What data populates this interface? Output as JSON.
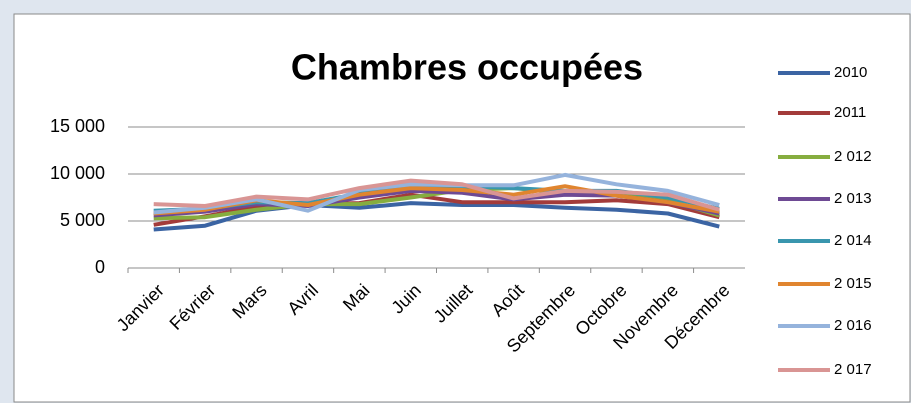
{
  "chart_data": {
    "type": "line",
    "title": "Chambres occupées",
    "categories": [
      "Janvier",
      "Février",
      "Mars",
      "Avril",
      "Mai",
      "Juin",
      "Juillet",
      "Août",
      "Septembre",
      "Octobre",
      "Novembre",
      "Décembre"
    ],
    "series": [
      {
        "name": "2010",
        "color": "#3b64a3",
        "values": [
          4100,
          4500,
          6100,
          6700,
          6400,
          6900,
          6700,
          6700,
          6400,
          6200,
          5800,
          4400
        ]
      },
      {
        "name": "2011",
        "color": "#a33b3a",
        "values": [
          4600,
          5500,
          6500,
          6800,
          6900,
          7800,
          7000,
          7000,
          7000,
          7200,
          6800,
          5400
        ]
      },
      {
        "name": "2 012",
        "color": "#86ad3f",
        "values": [
          5300,
          5400,
          6200,
          6800,
          6800,
          7500,
          8300,
          8500,
          8000,
          8000,
          7200,
          5600
        ]
      },
      {
        "name": "2 013",
        "color": "#6e4a94",
        "values": [
          5600,
          6000,
          6800,
          6600,
          7500,
          8200,
          8000,
          7300,
          7800,
          7700,
          7000,
          5800
        ]
      },
      {
        "name": "2 014",
        "color": "#3996ae",
        "values": [
          6100,
          6300,
          7000,
          6900,
          7900,
          8600,
          8700,
          8500,
          8200,
          8200,
          7500,
          6300
        ]
      },
      {
        "name": "2 015",
        "color": "#e0852f",
        "values": [
          5800,
          6200,
          7200,
          6700,
          7800,
          8500,
          8300,
          7800,
          8700,
          7700,
          7000,
          6000
        ]
      },
      {
        "name": "2 016",
        "color": "#95b3dc",
        "values": [
          5900,
          6400,
          7300,
          6100,
          8300,
          8900,
          8800,
          8800,
          9900,
          8900,
          8200,
          6700
        ]
      },
      {
        "name": "2 017",
        "color": "#d99594",
        "values": [
          6800,
          6600,
          7600,
          7300,
          8500,
          9300,
          8900,
          7400,
          8200,
          8100,
          7800,
          6200
        ]
      }
    ],
    "ylim": [
      0,
      15000
    ],
    "yticks": [
      0,
      {
        "value": 5000,
        "label": "5 000"
      },
      {
        "value": 10000,
        "label": "10 000"
      },
      {
        "value": 15000,
        "label": "15 000"
      }
    ],
    "grid": true,
    "legend": "right"
  }
}
